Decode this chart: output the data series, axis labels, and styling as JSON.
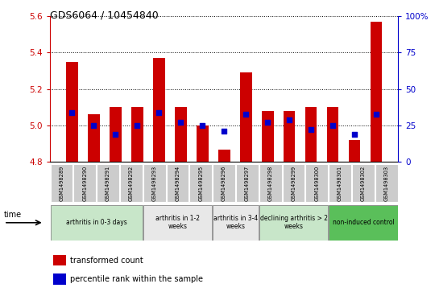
{
  "title": "GDS6064 / 10454840",
  "samples": [
    "GSM1498289",
    "GSM1498290",
    "GSM1498291",
    "GSM1498292",
    "GSM1498293",
    "GSM1498294",
    "GSM1498295",
    "GSM1498296",
    "GSM1498297",
    "GSM1498298",
    "GSM1498299",
    "GSM1498300",
    "GSM1498301",
    "GSM1498302",
    "GSM1498303"
  ],
  "red_values": [
    5.35,
    5.06,
    5.1,
    5.1,
    5.37,
    5.1,
    5.0,
    4.87,
    5.29,
    5.08,
    5.08,
    5.1,
    5.1,
    4.92,
    5.57
  ],
  "blue_values": [
    5.07,
    5.0,
    4.95,
    5.0,
    5.07,
    5.02,
    5.0,
    4.97,
    5.06,
    5.02,
    5.03,
    4.98,
    5.0,
    4.95,
    5.06
  ],
  "ymin": 4.8,
  "ymax": 5.6,
  "yticks": [
    4.8,
    5.0,
    5.2,
    5.4,
    5.6
  ],
  "right_yticks": [
    0,
    25,
    50,
    75,
    100
  ],
  "right_ylabels": [
    "0",
    "25",
    "50",
    "75",
    "100%"
  ],
  "groups": [
    {
      "label": "arthritis in 0-3 days",
      "start": 0,
      "end": 4,
      "color": "#c8e6c9"
    },
    {
      "label": "arthritis in 1-2\nweeks",
      "start": 4,
      "end": 7,
      "color": "#e8e8e8"
    },
    {
      "label": "arthritis in 3-4\nweeks",
      "start": 7,
      "end": 9,
      "color": "#e8e8e8"
    },
    {
      "label": "declining arthritis > 2\nweeks",
      "start": 9,
      "end": 12,
      "color": "#c8e6c9"
    },
    {
      "label": "non-induced control",
      "start": 12,
      "end": 15,
      "color": "#5abf5a"
    }
  ],
  "bar_color": "#cc0000",
  "dot_color": "#0000cc",
  "bar_bottom": 4.8,
  "bar_width": 0.55,
  "dot_size": 18,
  "left_tick_color": "#cc0000",
  "right_tick_color": "#0000cc",
  "legend_items": [
    {
      "label": "transformed count",
      "color": "#cc0000"
    },
    {
      "label": "percentile rank within the sample",
      "color": "#0000cc"
    }
  ]
}
